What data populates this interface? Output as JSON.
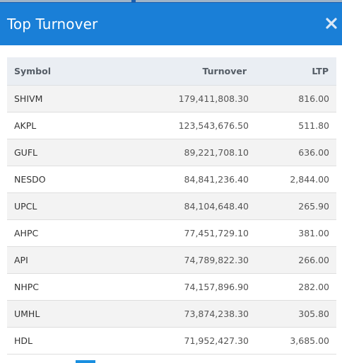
{
  "header": {
    "title": "Top Turnover",
    "close_icon": "close-icon",
    "background_color": "#1a7fd7"
  },
  "table": {
    "columns": [
      "Symbol",
      "Turnover",
      "LTP"
    ],
    "rows": [
      {
        "symbol": "SHIVM",
        "turnover": "179,411,808.30",
        "ltp": "816.00"
      },
      {
        "symbol": "AKPL",
        "turnover": "123,543,676.50",
        "ltp": "511.80"
      },
      {
        "symbol": "GUFL",
        "turnover": "89,221,708.10",
        "ltp": "636.00"
      },
      {
        "symbol": "NESDO",
        "turnover": "84,841,236.40",
        "ltp": "2,844.00"
      },
      {
        "symbol": "UPCL",
        "turnover": "84,104,648.40",
        "ltp": "265.90"
      },
      {
        "symbol": "AHPC",
        "turnover": "77,451,729.10",
        "ltp": "381.00"
      },
      {
        "symbol": "API",
        "turnover": "74,789,822.30",
        "ltp": "266.00"
      },
      {
        "symbol": "NHPC",
        "turnover": "74,157,896.90",
        "ltp": "282.00"
      },
      {
        "symbol": "UMHL",
        "turnover": "73,874,238.30",
        "ltp": "305.80"
      },
      {
        "symbol": "HDL",
        "turnover": "71,952,427.30",
        "ltp": "3,685.00"
      }
    ]
  }
}
